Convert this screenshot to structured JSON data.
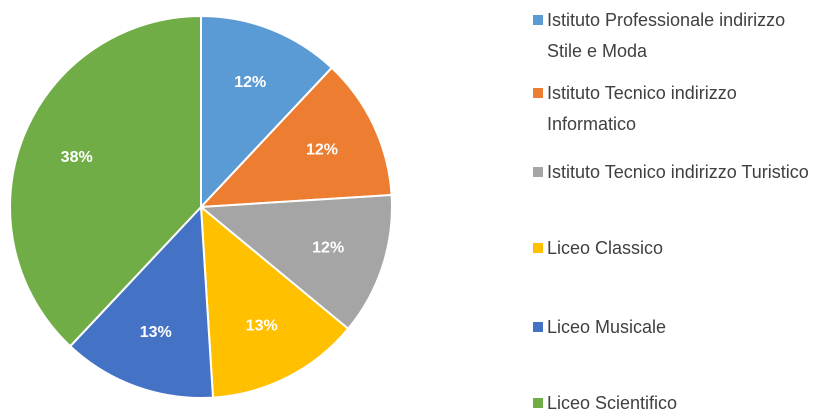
{
  "chart_data": {
    "type": "pie",
    "categories": [
      "Istituto Professionale indirizzo Stile e Moda",
      "Istituto Tecnico indirizzo Informatico",
      "Istituto Tecnico indirizzo Turistico",
      "Liceo Classico",
      "Liceo Musicale",
      "Liceo Scientifico"
    ],
    "values": [
      12,
      12,
      12,
      13,
      13,
      38
    ],
    "value_labels": [
      "12%",
      "12%",
      "12%",
      "13%",
      "13%",
      "38%"
    ],
    "colors": [
      "#5b9bd5",
      "#ed7d31",
      "#a5a5a5",
      "#ffc000",
      "#4472c4",
      "#70ad47"
    ],
    "legend": "right"
  }
}
